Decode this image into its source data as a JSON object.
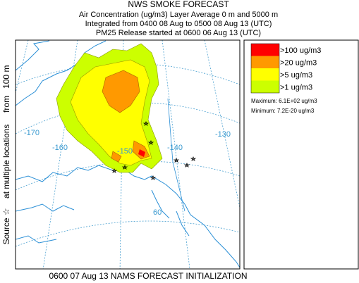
{
  "header": {
    "title": "NWS SMOKE FORECAST",
    "lines": [
      "Air Concentration (ug/m3) Layer Average    0 m and  5000 m",
      "Integrated from 0400 08 Aug to 0500 08 Aug 13 (UTC)",
      "PM25 Release started at 0600 06 Aug 13 (UTC)"
    ]
  },
  "legend": {
    "items": [
      {
        "label": ">100 ug/m3",
        "color": "#ff0000"
      },
      {
        "label": ">20 ug/m3",
        "color": "#ff9900"
      },
      {
        "label": ">5 ug/m3",
        "color": "#ffff00"
      },
      {
        "label": ">1 ug/m3",
        "color": "#ccff00"
      }
    ],
    "stats": [
      "Maximum: 6.1E+02 ug/m3",
      "Minimum: 7.2E-20 ug/m3"
    ]
  },
  "side_label": "Source ☆    at multiple locations     from   100 m",
  "footer": "0600 07 Aug 13 NAMS FORECAST INITIALIZATION",
  "map": {
    "labels": [
      "-170",
      "-160",
      "-150",
      "-140",
      "-130",
      "60"
    ]
  }
}
